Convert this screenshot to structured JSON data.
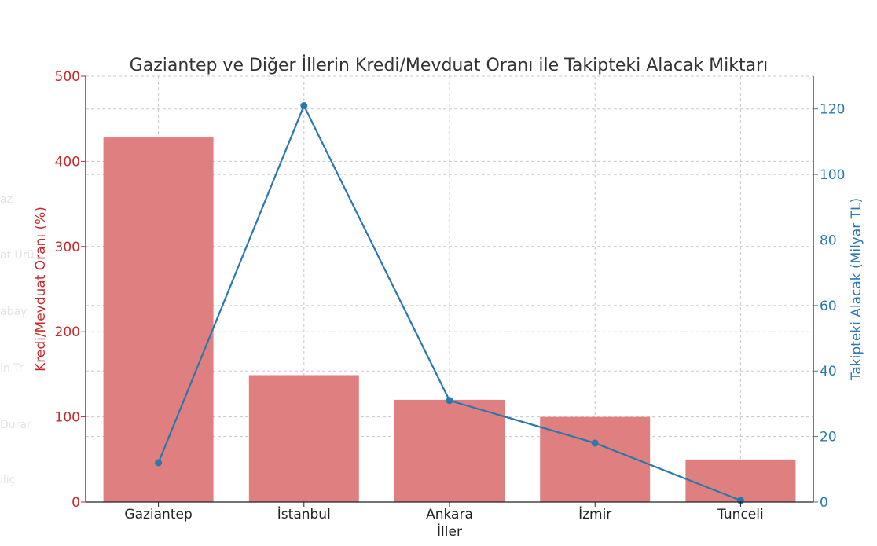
{
  "chart_data": {
    "type": "bar",
    "title": "Gaziantep ve Diğer İllerin Kredi/Mevduat Oranı ile Takipteki Alacak Miktarı",
    "xlabel": "İller",
    "ylabel_left": "Kredi/Mevduat Oranı (%)",
    "ylabel_right": "Takipteki Alacak (Milyar TL)",
    "categories": [
      "Gaziantep",
      "İstanbul",
      "Ankara",
      "İzmir",
      "Tunceli"
    ],
    "ylim_left": [
      0,
      500
    ],
    "ylim_right": [
      0,
      130
    ],
    "left_ticks": [
      0,
      100,
      200,
      300,
      400,
      500
    ],
    "right_ticks": [
      0,
      20,
      40,
      60,
      80,
      100,
      120
    ],
    "grid": true,
    "series": [
      {
        "type": "bar",
        "axis": "left",
        "color": "#e07f7f",
        "values": [
          428,
          149,
          120,
          100,
          50
        ]
      },
      {
        "type": "line",
        "axis": "right",
        "color": "#2a78ad",
        "values": [
          12,
          121,
          31,
          18,
          0.5
        ]
      }
    ],
    "colors": {
      "left_axis": "#c82a2a",
      "right_axis": "#2a78ad",
      "title": "#333333",
      "grid": "#c8c8c8"
    }
  }
}
